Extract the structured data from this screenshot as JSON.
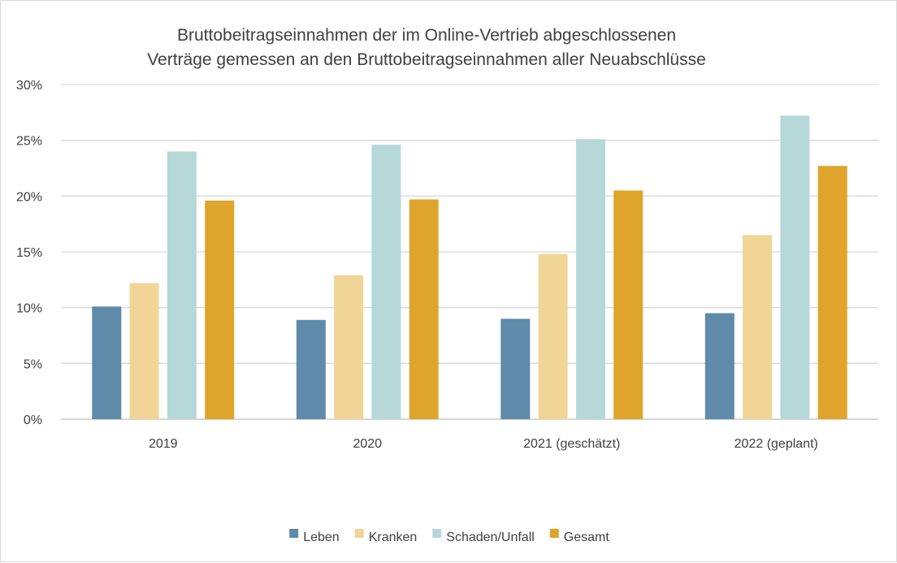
{
  "chart_data": {
    "type": "bar",
    "title": [
      "Bruttobeitragseinnahmen der im Online-Vertrieb abgeschlossenen",
      "Verträge gemessen an den Bruttobeitragseinnahmen aller Neuabschlüsse"
    ],
    "categories": [
      "2019",
      "2020",
      "2021 (geschätzt)",
      "2022 (geplant)"
    ],
    "series": [
      {
        "name": "Leben",
        "color": "#5f8aa9",
        "values": [
          10.1,
          8.9,
          9.0,
          9.5
        ]
      },
      {
        "name": "Kranken",
        "color": "#f0d596",
        "values": [
          12.2,
          12.9,
          14.8,
          16.5
        ]
      },
      {
        "name": "Schaden/Unfall",
        "color": "#b6d8d9",
        "values": [
          24.0,
          24.6,
          25.1,
          27.2
        ]
      },
      {
        "name": "Gesamt",
        "color": "#dfa42b",
        "values": [
          19.6,
          19.7,
          20.5,
          22.7
        ]
      }
    ],
    "ylim": [
      0,
      30
    ],
    "yticks": [
      0,
      5,
      10,
      15,
      20,
      25,
      30
    ],
    "ytick_labels": [
      "0%",
      "5%",
      "10%",
      "15%",
      "20%",
      "25%",
      "30%"
    ],
    "xlabel": "",
    "ylabel": "",
    "grid": true,
    "legend": "bottom"
  }
}
